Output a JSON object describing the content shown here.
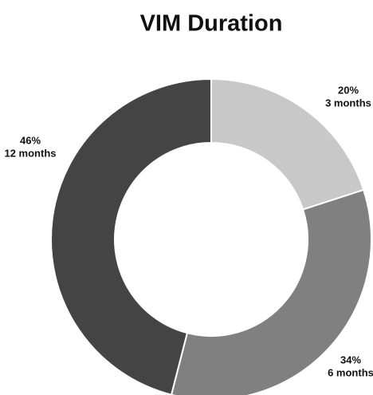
{
  "chart_data": {
    "type": "donut",
    "title": "VIM Duration",
    "categories": [
      "3 months",
      "6 months",
      "12 months"
    ],
    "values": [
      20,
      34,
      46
    ],
    "value_labels": [
      "20%",
      "34%",
      "46%"
    ],
    "colors": [
      "#c8c8c8",
      "#808080",
      "#444444"
    ]
  }
}
